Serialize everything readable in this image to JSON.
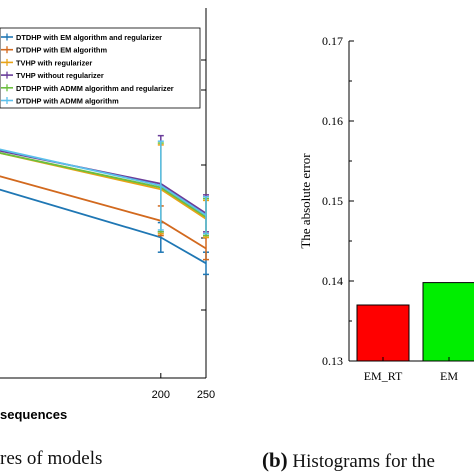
{
  "chart_data": [
    {
      "type": "line",
      "xlabel": "sequences",
      "ylabel": "",
      "x_ticks": [
        200,
        250
      ],
      "xlim": [
        0,
        250
      ],
      "ylim": [
        0.1,
        0.3
      ],
      "legend_position": "top-right",
      "error_bars": true,
      "x": [
        0,
        200,
        250
      ],
      "series": [
        {
          "name": "DTDHP with EM algorithm and regularizer",
          "color": "#1f77b4",
          "values": [
            0.205,
            0.176,
            0.162
          ],
          "errors": [
            0.004,
            0.008,
            0.006
          ]
        },
        {
          "name": "DTDHP with EM algorithm",
          "color": "#d2691e",
          "values": [
            0.212,
            0.185,
            0.17
          ],
          "errors": [
            0.004,
            0.008,
            0.006
          ]
        },
        {
          "name": "TVHP with regularizer",
          "color": "#e8a317",
          "values": [
            0.224,
            0.202,
            0.186
          ],
          "errors": [
            0.004,
            0.024,
            0.01
          ]
        },
        {
          "name": "TVHP without regularizer",
          "color": "#6a3d9a",
          "values": [
            0.225,
            0.205,
            0.189
          ],
          "errors": [
            0.004,
            0.026,
            0.01
          ]
        },
        {
          "name": "DTDHP with ADMM algorithm and regularizer",
          "color": "#6bbf3f",
          "values": [
            0.224,
            0.203,
            0.187
          ],
          "errors": [
            0.004,
            0.024,
            0.01
          ]
        },
        {
          "name": "DTDHP with ADMM algorithm",
          "color": "#5bc0eb",
          "values": [
            0.226,
            0.204,
            0.188
          ],
          "errors": [
            0.004,
            0.024,
            0.01
          ]
        }
      ]
    },
    {
      "type": "bar",
      "ylabel": "The absolute error",
      "ylim": [
        0.13,
        0.17
      ],
      "y_ticks": [
        0.13,
        0.14,
        0.15,
        0.16,
        0.17
      ],
      "y_tick_labels": [
        "0.13",
        "0.14",
        "0.15",
        "0.16",
        "0.17"
      ],
      "categories": [
        "EM_RT",
        "EM"
      ],
      "values": [
        0.137,
        0.1398
      ],
      "colors": [
        "#ff0000",
        "#00ee00"
      ]
    }
  ],
  "captions": {
    "left": "res of models",
    "right_label": "(b)",
    "right_text": "Histograms for the"
  }
}
